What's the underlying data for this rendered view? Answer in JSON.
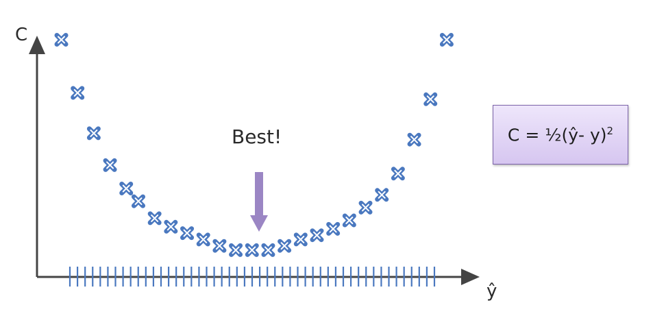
{
  "diagram": {
    "y_axis_label": "C",
    "x_axis_label": "ŷ",
    "best_label": "Best!",
    "formula": {
      "lhs": "C = ½(ŷ- y)",
      "exponent": "2"
    },
    "colors": {
      "marker": "#4a78bf",
      "axis": "#444444",
      "arrow": "#9b86c4",
      "box_border": "#7a62a8"
    },
    "tick_count": 49,
    "cost_points": [
      {
        "yhat": 0.06,
        "cost": 1.0
      },
      {
        "yhat": 0.1,
        "cost": 0.75
      },
      {
        "yhat": 0.14,
        "cost": 0.56
      },
      {
        "yhat": 0.18,
        "cost": 0.41
      },
      {
        "yhat": 0.22,
        "cost": 0.3
      },
      {
        "yhat": 0.25,
        "cost": 0.24
      },
      {
        "yhat": 0.29,
        "cost": 0.16
      },
      {
        "yhat": 0.33,
        "cost": 0.12
      },
      {
        "yhat": 0.37,
        "cost": 0.09
      },
      {
        "yhat": 0.41,
        "cost": 0.06
      },
      {
        "yhat": 0.45,
        "cost": 0.03
      },
      {
        "yhat": 0.49,
        "cost": 0.01
      },
      {
        "yhat": 0.53,
        "cost": 0.01
      },
      {
        "yhat": 0.57,
        "cost": 0.01
      },
      {
        "yhat": 0.61,
        "cost": 0.03
      },
      {
        "yhat": 0.65,
        "cost": 0.06
      },
      {
        "yhat": 0.69,
        "cost": 0.08
      },
      {
        "yhat": 0.73,
        "cost": 0.11
      },
      {
        "yhat": 0.77,
        "cost": 0.15
      },
      {
        "yhat": 0.81,
        "cost": 0.21
      },
      {
        "yhat": 0.85,
        "cost": 0.27
      },
      {
        "yhat": 0.89,
        "cost": 0.37
      },
      {
        "yhat": 0.93,
        "cost": 0.53
      },
      {
        "yhat": 0.97,
        "cost": 0.72
      },
      {
        "yhat": 1.01,
        "cost": 1.0
      }
    ]
  }
}
